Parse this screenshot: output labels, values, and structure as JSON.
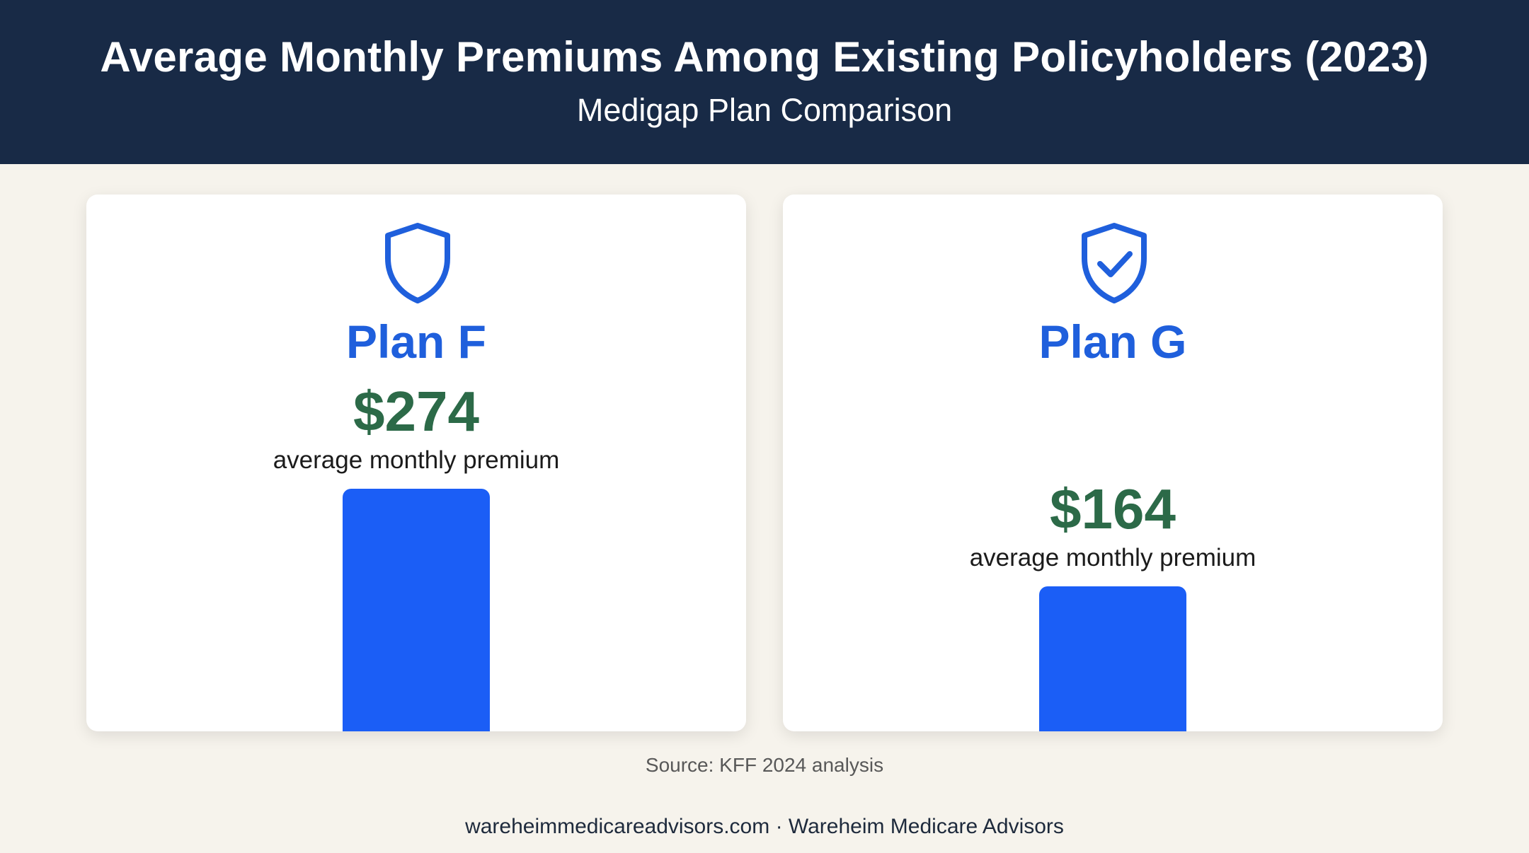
{
  "header": {
    "title": "Average Monthly Premiums Among Existing Policyholders (2023)",
    "subtitle": "Medigap Plan Comparison"
  },
  "cards": [
    {
      "plan": "Plan F",
      "value_label": "$274",
      "caption": "average monthly premium",
      "icon": "shield-icon"
    },
    {
      "plan": "Plan G",
      "value_label": "$164",
      "caption": "average monthly premium",
      "icon": "shield-check-icon"
    }
  ],
  "chart_data": {
    "type": "bar",
    "title": "Average Monthly Premiums Among Existing Policyholders (2023)",
    "subtitle": "Medigap Plan Comparison",
    "categories": [
      "Plan F",
      "Plan G"
    ],
    "values": [
      274,
      164
    ],
    "value_labels": [
      "$274",
      "$164"
    ],
    "unit": "USD per month",
    "grid": false,
    "colors": {
      "bar": "#1b5ef6",
      "value": "#2c6a48",
      "plan": "#1f5fdc",
      "header": "#182a46"
    }
  },
  "source": "Source: KFF 2024 analysis",
  "footer": "wareheimmedicareadvisors.com · Wareheim Medicare Advisors"
}
